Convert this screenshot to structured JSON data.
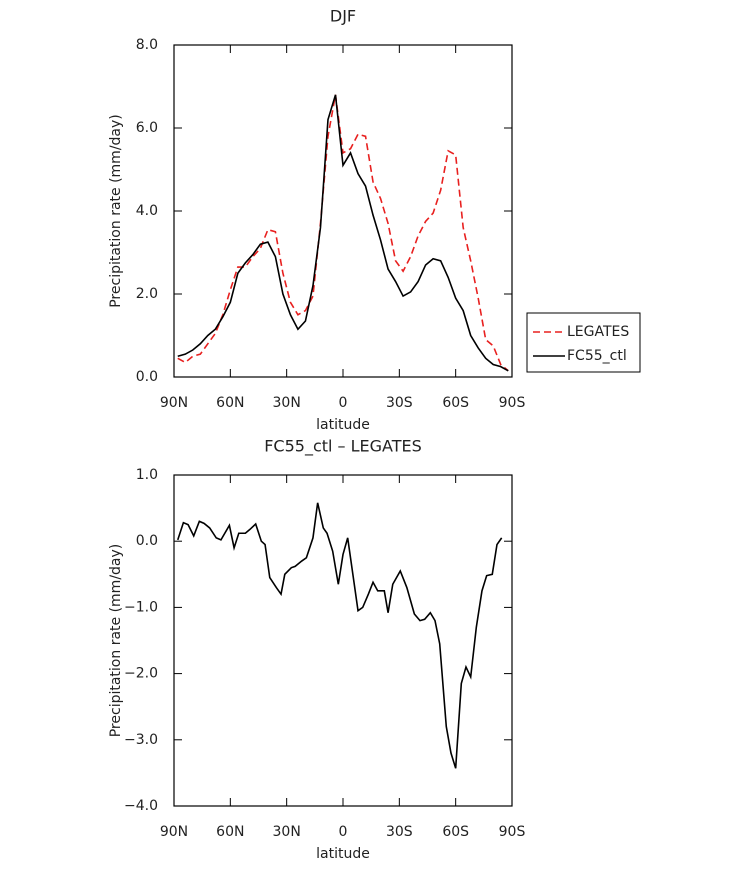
{
  "chart_data": [
    {
      "type": "line",
      "title": "DJF",
      "xlabel": "latitude",
      "ylabel": "Precipitation rate (mm/day)",
      "x": [
        88,
        84,
        80,
        76,
        72,
        68,
        64,
        60,
        56,
        52,
        48,
        44,
        40,
        36,
        32,
        28,
        24,
        20,
        16,
        12,
        8,
        4,
        0,
        -4,
        -8,
        -12,
        -16,
        -20,
        -24,
        -28,
        -32,
        -36,
        -40,
        -44,
        -48,
        -52,
        -56,
        -60,
        -64,
        -68,
        -72,
        -76,
        -80,
        -84,
        -88
      ],
      "series": [
        {
          "name": "LEGATES",
          "color": "#e8201f",
          "style": "dashed",
          "values": [
            0.45,
            0.35,
            0.5,
            0.55,
            0.8,
            1.05,
            1.5,
            2.1,
            2.65,
            2.65,
            2.9,
            3.1,
            3.55,
            3.5,
            2.5,
            1.8,
            1.5,
            1.6,
            1.95,
            3.7,
            5.8,
            6.8,
            5.4,
            5.5,
            5.85,
            5.8,
            4.7,
            4.3,
            3.7,
            2.8,
            2.55,
            2.9,
            3.4,
            3.75,
            3.95,
            4.5,
            5.45,
            5.35,
            3.6,
            2.8,
            1.9,
            0.9,
            0.75,
            0.3,
            0.15
          ]
        },
        {
          "name": "FC55_ctl",
          "color": "#000000",
          "style": "solid",
          "values": [
            0.5,
            0.55,
            0.65,
            0.8,
            1.0,
            1.15,
            1.45,
            1.8,
            2.5,
            2.75,
            2.95,
            3.2,
            3.25,
            2.9,
            2.0,
            1.5,
            1.15,
            1.35,
            2.2,
            3.6,
            6.2,
            6.8,
            5.1,
            5.4,
            4.9,
            4.6,
            3.9,
            3.3,
            2.6,
            2.3,
            1.95,
            2.05,
            2.3,
            2.7,
            2.85,
            2.8,
            2.4,
            1.9,
            1.6,
            1.0,
            0.7,
            0.45,
            0.3,
            0.25,
            0.15
          ]
        }
      ],
      "xlim": [
        90,
        -90
      ],
      "xticks": [
        {
          "value": 90,
          "label": "90N"
        },
        {
          "value": 60,
          "label": "60N"
        },
        {
          "value": 30,
          "label": "30N"
        },
        0,
        {
          "value": -30,
          "label": "30S"
        },
        {
          "value": -60,
          "label": "60S"
        },
        {
          "value": -90,
          "label": "90S"
        }
      ],
      "ylim": [
        0,
        8
      ],
      "yticks": [
        {
          "value": 0,
          "label": "0.0"
        },
        {
          "value": 2,
          "label": "2.0"
        },
        {
          "value": 4,
          "label": "4.0"
        },
        {
          "value": 6,
          "label": "6.0"
        },
        {
          "value": 8,
          "label": "8.0"
        }
      ],
      "legend": "right"
    },
    {
      "type": "line",
      "title": "FC55_ctl – LEGATES",
      "xlabel": "latitude",
      "ylabel": "Precipitation rate (mm/day)",
      "x": [
        88,
        85,
        82.5,
        79.5,
        76.5,
        74,
        71,
        67.5,
        65,
        60.5,
        58,
        55.5,
        52,
        49.5,
        46.5,
        43.5,
        41.5,
        39,
        35.5,
        33,
        31,
        27.5,
        25.5,
        22,
        19.5,
        16,
        13.5,
        10.5,
        8.5,
        5.5,
        2.5,
        0,
        -2.5,
        -5.5,
        -8,
        -10.5,
        -13.5,
        -16,
        -18.5,
        -22,
        -24,
        -26.5,
        -30.5,
        -34,
        -38,
        -41,
        -43.5,
        -46.5,
        -49,
        -51.5,
        -55,
        -57.5,
        -60,
        -63,
        -65.5,
        -68,
        -71,
        -74,
        -76.5,
        -79.5,
        -82,
        -84.5
      ],
      "series": [
        {
          "name": "FC55_ctl – LEGATES",
          "color": "#000000",
          "style": "solid",
          "values": [
            0.02,
            0.28,
            0.25,
            0.08,
            0.3,
            0.27,
            0.2,
            0.05,
            0.02,
            0.24,
            -0.1,
            0.12,
            0.12,
            0.18,
            0.26,
            0.0,
            -0.05,
            -0.55,
            -0.7,
            -0.8,
            -0.5,
            -0.4,
            -0.38,
            -0.3,
            -0.25,
            0.05,
            0.58,
            0.2,
            0.12,
            -0.15,
            -0.65,
            -0.2,
            0.05,
            -0.55,
            -1.05,
            -1.0,
            -0.8,
            -0.62,
            -0.75,
            -0.75,
            -1.08,
            -0.65,
            -0.45,
            -0.7,
            -1.1,
            -1.2,
            -1.18,
            -1.08,
            -1.2,
            -1.55,
            -2.8,
            -3.2,
            -3.43,
            -2.15,
            -1.9,
            -2.05,
            -1.3,
            -0.75,
            -0.52,
            -0.5,
            -0.05,
            0.05
          ]
        }
      ],
      "xlim": [
        90,
        -90
      ],
      "xticks": [
        {
          "value": 90,
          "label": "90N"
        },
        {
          "value": 60,
          "label": "60N"
        },
        {
          "value": 30,
          "label": "30N"
        },
        0,
        {
          "value": -30,
          "label": "30S"
        },
        {
          "value": -60,
          "label": "60S"
        },
        {
          "value": -90,
          "label": "90S"
        }
      ],
      "ylim": [
        -4,
        1
      ],
      "yticks": [
        {
          "value": -4,
          "label": "−4.0"
        },
        {
          "value": -3,
          "label": "−3.0"
        },
        {
          "value": -2,
          "label": "−2.0"
        },
        {
          "value": -1,
          "label": "−1.0"
        },
        {
          "value": 0,
          "label": "0.0"
        },
        {
          "value": 1,
          "label": "1.0"
        }
      ]
    }
  ]
}
